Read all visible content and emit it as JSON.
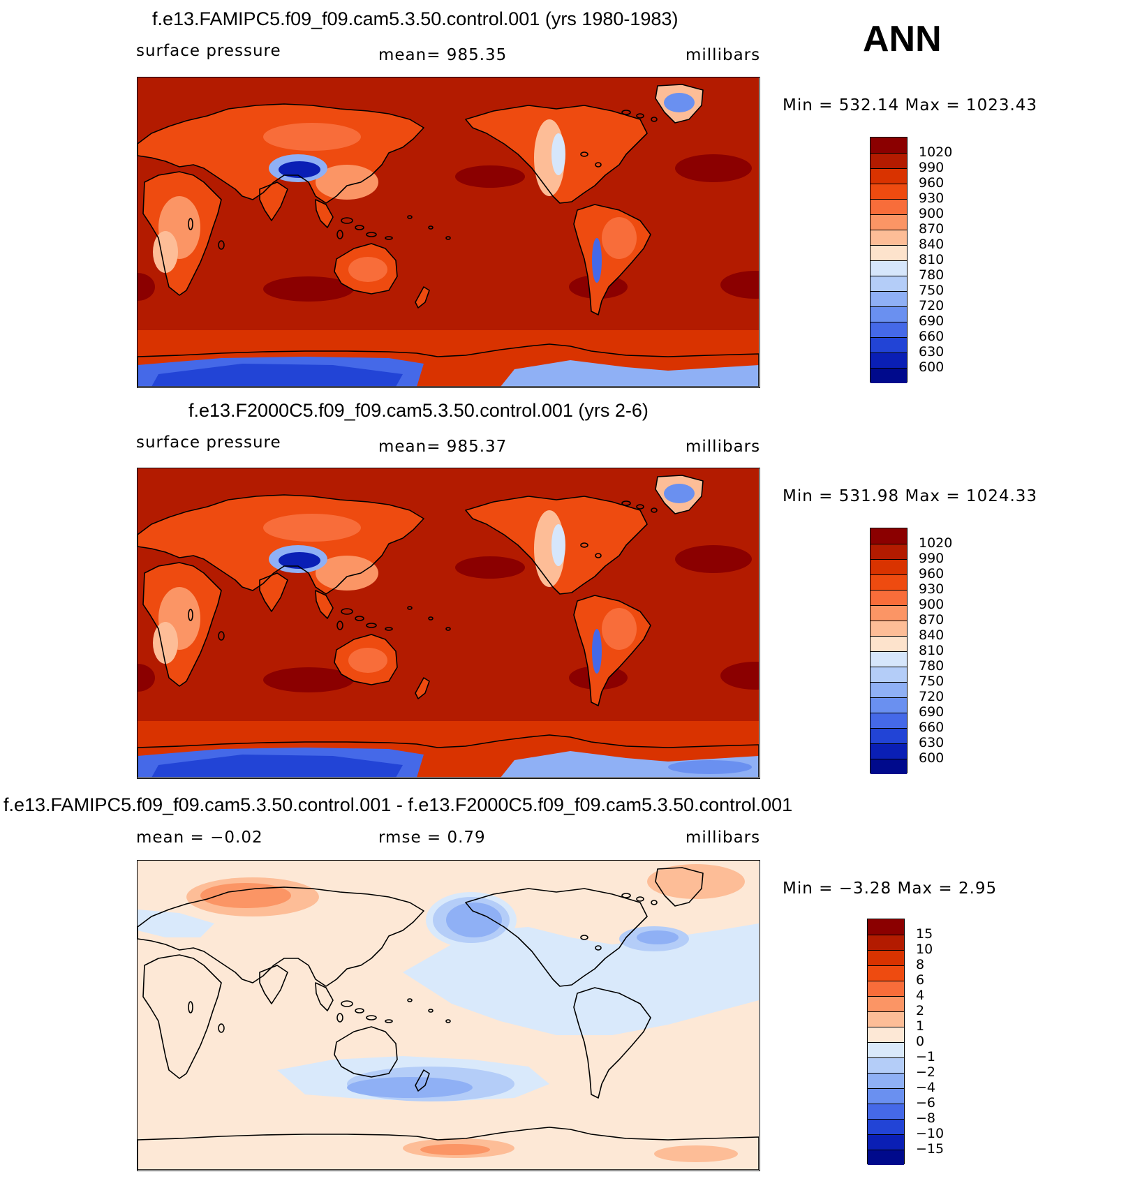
{
  "season": "ANN",
  "panels": [
    {
      "title": "f.e13.FAMIPC5.f09_f09.cam5.3.50.control.001 (yrs 1980-1983)",
      "left": "surface  pressure",
      "center": "mean=  985.35",
      "right": "millibars",
      "minmax": "Min  =  532.14  Max  =  1023.43",
      "kind": "field",
      "variant": 0
    },
    {
      "title": "f.e13.F2000C5.f09_f09.cam5.3.50.control.001 (yrs 2-6)",
      "left": "surface  pressure",
      "center": "mean=  985.37",
      "right": "millibars",
      "minmax": "Min  =  531.98  Max  =  1024.33",
      "kind": "field",
      "variant": 1
    },
    {
      "title": "f.e13.FAMIPC5.f09_f09.cam5.3.50.control.001 - f.e13.F2000C5.f09_f09.cam5.3.50.control.001",
      "left": "mean  =   −0.02",
      "center": "rmse  =     0.79",
      "right": "millibars",
      "minmax": "Min  =    −3.28  Max  =     2.95",
      "kind": "diff",
      "variant": 2
    }
  ],
  "chart_data": {
    "type": "heatmap",
    "variable": "surface pressure",
    "units": "millibars",
    "field_levels": [
      "1020",
      "990",
      "960",
      "930",
      "900",
      "870",
      "840",
      "810",
      "780",
      "750",
      "720",
      "690",
      "660",
      "630",
      "600"
    ],
    "field_colors": [
      "#8b0000",
      "#b31b00",
      "#d93300",
      "#ee4b10",
      "#f86d3a",
      "#fb9565",
      "#fdbd97",
      "#fde3cc",
      "#d6e6fb",
      "#b4cdf8",
      "#8fb0f5",
      "#6a90f0",
      "#4569e8",
      "#2244d6",
      "#0a1fb5",
      "#000a8c"
    ],
    "diff_levels": [
      "15",
      "10",
      "8",
      "6",
      "4",
      "2",
      "1",
      "0",
      "−1",
      "−2",
      "−4",
      "−6",
      "−8",
      "−10",
      "−15"
    ],
    "diff_colors": [
      "#8b0000",
      "#b31b00",
      "#d93300",
      "#ee4b10",
      "#f86d3a",
      "#fb9565",
      "#fdbd97",
      "#fde8d6",
      "#d9e9fb",
      "#b4cdf8",
      "#8fb0f5",
      "#6a90f0",
      "#4569e8",
      "#2244d6",
      "#0a1fb5",
      "#000a8c"
    ]
  }
}
